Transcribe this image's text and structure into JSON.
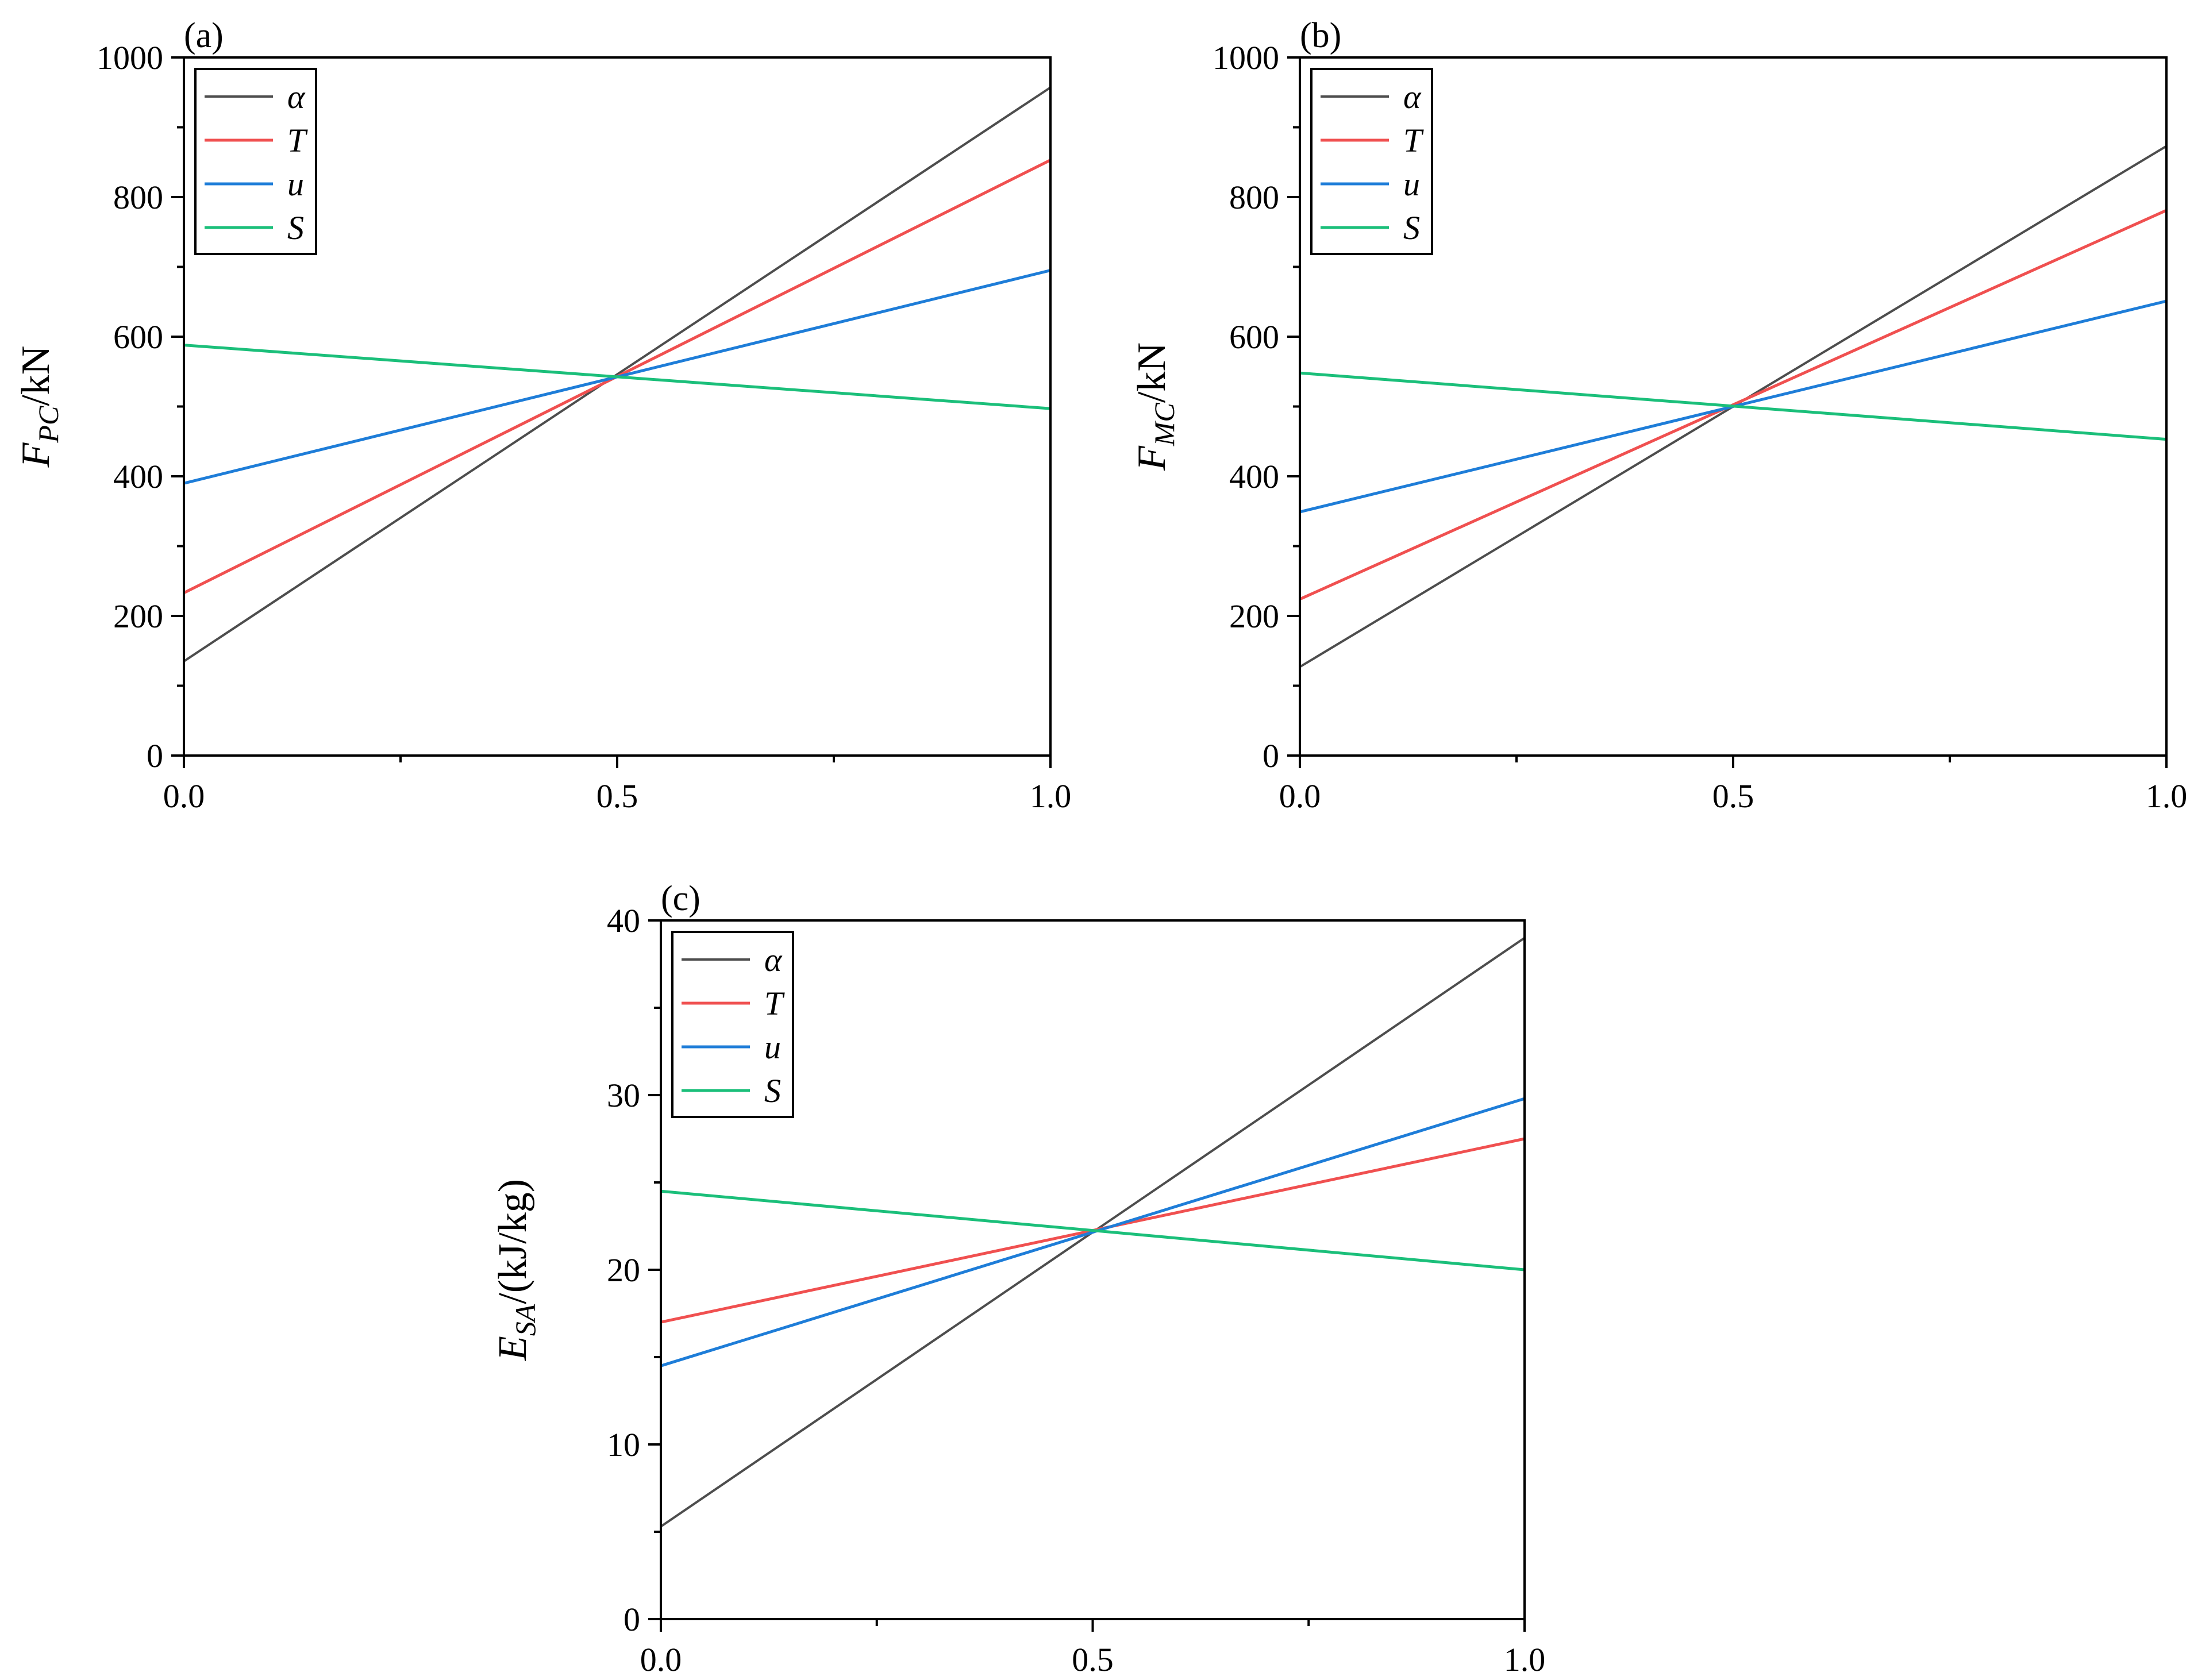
{
  "colors": {
    "alpha": "#4d4d4d",
    "T": "#f05050",
    "u": "#1e7dd8",
    "S": "#1bbf7a",
    "axis": "#000000"
  },
  "chart_data": [
    {
      "panel": "(a)",
      "type": "line",
      "ylabel": {
        "main": "F",
        "sub": "PC",
        "unit": "/kN"
      },
      "xlim": [
        0.0,
        1.0
      ],
      "ylim": [
        0,
        1000
      ],
      "xticks": [
        "0.0",
        "0.5",
        "1.0"
      ],
      "xtick_values": [
        0.0,
        0.5,
        1.0
      ],
      "yticks": [
        "0",
        "200",
        "400",
        "600",
        "800",
        "1000"
      ],
      "ytick_values": [
        0,
        200,
        400,
        600,
        800,
        1000
      ],
      "legend_position": "top-left",
      "grid": false,
      "series": [
        {
          "name": "α",
          "color_key": "alpha",
          "x": [
            0.0,
            1.0
          ],
          "y": [
            135,
            957
          ]
        },
        {
          "name": "T",
          "color_key": "T",
          "x": [
            0.0,
            1.0
          ],
          "y": [
            233,
            853
          ]
        },
        {
          "name": "u",
          "color_key": "u",
          "x": [
            0.0,
            1.0
          ],
          "y": [
            390,
            695
          ]
        },
        {
          "name": "S",
          "color_key": "S",
          "x": [
            0.0,
            1.0
          ],
          "y": [
            588,
            497
          ]
        }
      ]
    },
    {
      "panel": "(b)",
      "type": "line",
      "ylabel": {
        "main": "F",
        "sub": "MC",
        "unit": "/kN"
      },
      "xlim": [
        0.0,
        1.0
      ],
      "ylim": [
        0,
        1000
      ],
      "xticks": [
        "0.0",
        "0.5",
        "1.0"
      ],
      "xtick_values": [
        0.0,
        0.5,
        1.0
      ],
      "yticks": [
        "0",
        "200",
        "400",
        "600",
        "800",
        "1000"
      ],
      "ytick_values": [
        0,
        200,
        400,
        600,
        800,
        1000
      ],
      "legend_position": "top-left",
      "grid": false,
      "series": [
        {
          "name": "α",
          "color_key": "alpha",
          "x": [
            0.0,
            1.0
          ],
          "y": [
            127,
            873
          ]
        },
        {
          "name": "T",
          "color_key": "T",
          "x": [
            0.0,
            1.0
          ],
          "y": [
            224,
            781
          ]
        },
        {
          "name": "u",
          "color_key": "u",
          "x": [
            0.0,
            1.0
          ],
          "y": [
            349,
            651
          ]
        },
        {
          "name": "S",
          "color_key": "S",
          "x": [
            0.0,
            1.0
          ],
          "y": [
            548,
            453
          ]
        }
      ]
    },
    {
      "panel": "(c)",
      "type": "line",
      "ylabel": {
        "main": "E",
        "sub": "SA",
        "unit": "/(kJ/kg)"
      },
      "xlim": [
        0.0,
        1.0
      ],
      "ylim": [
        0,
        40
      ],
      "xticks": [
        "0.0",
        "0.5",
        "1.0"
      ],
      "xtick_values": [
        0.0,
        0.5,
        1.0
      ],
      "yticks": [
        "0",
        "10",
        "20",
        "30",
        "40"
      ],
      "ytick_values": [
        0,
        10,
        20,
        30,
        40
      ],
      "legend_position": "top-left",
      "grid": false,
      "series": [
        {
          "name": "α",
          "color_key": "alpha",
          "x": [
            0.0,
            1.0
          ],
          "y": [
            5.3,
            39.0
          ]
        },
        {
          "name": "T",
          "color_key": "T",
          "x": [
            0.0,
            1.0
          ],
          "y": [
            17.0,
            27.5
          ]
        },
        {
          "name": "u",
          "color_key": "u",
          "x": [
            0.0,
            1.0
          ],
          "y": [
            14.5,
            29.8
          ]
        },
        {
          "name": "S",
          "color_key": "S",
          "x": [
            0.0,
            1.0
          ],
          "y": [
            24.5,
            20.0
          ]
        }
      ]
    }
  ]
}
